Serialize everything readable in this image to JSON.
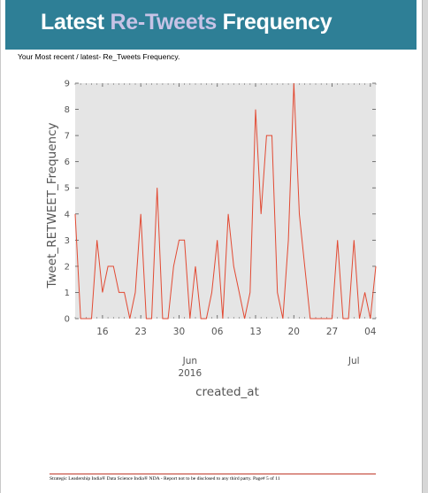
{
  "header": {
    "title_part1": "Latest ",
    "title_accent": "Re-Tweets",
    "title_part2": " Frequency"
  },
  "subtitle": "Your Most recent / latest- Re_Tweets Frequency.",
  "chart_data": {
    "type": "line",
    "title": "",
    "xlabel": "created_at",
    "ylabel": "Tweet_RETWEET_Frequency",
    "ylim": [
      0,
      9
    ],
    "yticks": [
      0,
      1,
      2,
      3,
      4,
      5,
      6,
      7,
      8,
      9
    ],
    "xlim": [
      0,
      55
    ],
    "xticks": [
      {
        "x": 5,
        "label": "16"
      },
      {
        "x": 12,
        "label": "23"
      },
      {
        "x": 19,
        "label": "30"
      },
      {
        "x": 26,
        "label": "06"
      },
      {
        "x": 33,
        "label": "13"
      },
      {
        "x": 40,
        "label": "20"
      },
      {
        "x": 47,
        "label": "27"
      },
      {
        "x": 54,
        "label": "04"
      }
    ],
    "month_labels": [
      {
        "x": 21,
        "label": "Jun",
        "year": "2016"
      },
      {
        "x": 51,
        "label": "Jul",
        "year": ""
      }
    ],
    "grid": false,
    "background": "#e5e5e5",
    "line_color": "#e24a33",
    "series": [
      {
        "x": [
          0,
          1,
          2,
          3,
          4,
          5,
          6,
          7,
          8,
          9,
          10,
          11,
          12,
          13,
          14,
          15,
          16,
          17,
          18,
          19,
          20,
          21,
          22,
          23,
          24,
          25,
          26,
          27,
          28,
          29,
          30,
          31,
          32,
          33,
          34,
          35,
          36,
          37,
          38,
          39,
          40,
          41,
          42,
          43,
          44,
          45,
          46,
          47,
          48,
          49,
          50,
          51,
          52,
          53,
          54,
          55
        ],
        "y": [
          4,
          0,
          0,
          0,
          3,
          1,
          2,
          2,
          1,
          1,
          0,
          1,
          4,
          0,
          0,
          5,
          0,
          0,
          2,
          3,
          3,
          0,
          2,
          0,
          0,
          1,
          3,
          0,
          4,
          2,
          1,
          0,
          1,
          8,
          4,
          7,
          7,
          1,
          0,
          3,
          9,
          4,
          2,
          0,
          0,
          0,
          0,
          0,
          3,
          0,
          0,
          3,
          0,
          1,
          0,
          2
        ]
      }
    ]
  },
  "footer": "Strategic Leadership India® Data Science India® NDA - Report not to be disclosed to any third party. Page# 5 of 11"
}
